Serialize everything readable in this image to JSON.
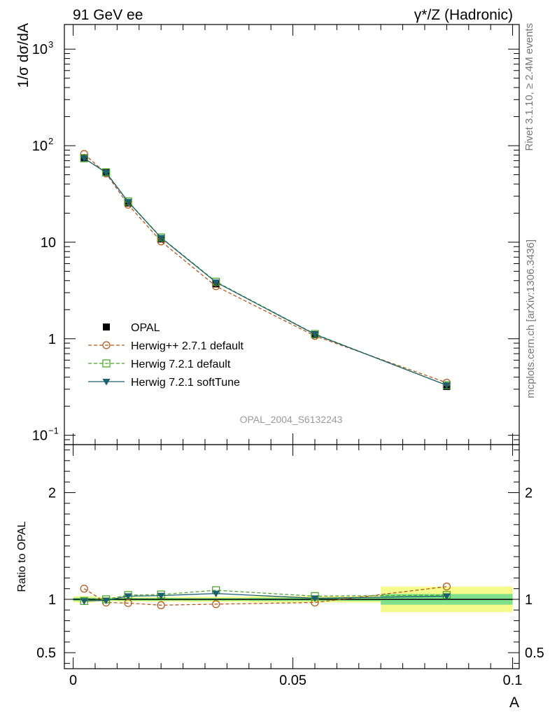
{
  "header": {
    "left_title": "91 GeV ee",
    "right_title": "γ*/Z (Hadronic)"
  },
  "side_labels": {
    "rivet": "Rivet 3.1.10, ≥ 2.4M events",
    "mcplots": "mcplots.cern.ch [arXiv:1306.3436]"
  },
  "watermark": "OPAL_2004_S6132243",
  "chart_data": [
    {
      "panel": "main",
      "type": "line",
      "ylabel": "1/σ dσ/dA",
      "yscale": "log",
      "ylim": [
        0.08,
        1800
      ],
      "yticks": [
        {
          "value": 0.1,
          "label": "10",
          "exp": "−1"
        },
        {
          "value": 1,
          "label": "1",
          "exp": ""
        },
        {
          "value": 10,
          "label": "10",
          "exp": ""
        },
        {
          "value": 100,
          "label": "10",
          "exp": "2"
        },
        {
          "value": 1000,
          "label": "10",
          "exp": "3"
        }
      ],
      "legend_position": "bottom-left",
      "series": [
        {
          "name": "OPAL",
          "style": "data",
          "color": "#000000",
          "x": [
            0.0025,
            0.0075,
            0.0125,
            0.02,
            0.0325,
            0.055,
            0.085
          ],
          "y": [
            75,
            53,
            25.5,
            10.8,
            3.7,
            1.1,
            0.32
          ]
        },
        {
          "name": "Herwig++ 2.7.1 default",
          "style": "dashed-circle",
          "color": "#b35a1f",
          "x": [
            0.0025,
            0.0075,
            0.0125,
            0.02,
            0.0325,
            0.055,
            0.085
          ],
          "y": [
            82,
            51.5,
            24.5,
            10.2,
            3.5,
            1.07,
            0.35
          ]
        },
        {
          "name": "Herwig 7.2.1 default",
          "style": "dashed-square",
          "color": "#4aa82a",
          "x": [
            0.0025,
            0.0075,
            0.0125,
            0.02,
            0.0325,
            0.055,
            0.085
          ],
          "y": [
            74,
            53,
            26.4,
            11.2,
            3.9,
            1.12,
            0.33
          ]
        },
        {
          "name": "Herwig 7.2.1 softTune",
          "style": "solid-triangle",
          "color": "#1c5f6e",
          "x": [
            0.0025,
            0.0075,
            0.0125,
            0.02,
            0.0325,
            0.055,
            0.085
          ],
          "y": [
            74,
            52.5,
            26.2,
            11.1,
            3.85,
            1.11,
            0.33
          ]
        }
      ]
    },
    {
      "panel": "ratio",
      "type": "line",
      "ylabel": "Ratio to OPAL",
      "xlabel": "A",
      "ylim": [
        0.35,
        2.45
      ],
      "yticks": [
        {
          "value": 0.5,
          "label": "0.5"
        },
        {
          "value": 1,
          "label": "1"
        },
        {
          "value": 2,
          "label": "2"
        }
      ],
      "xlim": [
        -0.002,
        0.1015
      ],
      "xticks": [
        {
          "value": 0,
          "label": "0"
        },
        {
          "value": 0.05,
          "label": "0.05"
        },
        {
          "value": 0.1,
          "label": "0.1"
        }
      ],
      "band_edges": [
        0,
        0.005,
        0.01,
        0.015,
        0.025,
        0.04,
        0.07,
        0.1
      ],
      "band_inner": [
        0.015,
        0.01,
        0.012,
        0.012,
        0.012,
        0.015,
        0.05
      ],
      "band_outer": [
        0.03,
        0.02,
        0.022,
        0.022,
        0.025,
        0.03,
        0.12
      ],
      "colors": {
        "band_inner": "#7ee08a",
        "band_outer": "#f5fa8c"
      },
      "series": [
        {
          "name": "Herwig++ 2.7.1 default",
          "style": "dashed-circle",
          "color": "#b35a1f",
          "x": [
            0.0025,
            0.0075,
            0.0125,
            0.02,
            0.0325,
            0.055,
            0.085
          ],
          "y": [
            1.1,
            0.97,
            0.965,
            0.945,
            0.955,
            0.97,
            1.12
          ]
        },
        {
          "name": "Herwig 7.2.1 default",
          "style": "dashed-square",
          "color": "#4aa82a",
          "x": [
            0.0025,
            0.0075,
            0.0125,
            0.02,
            0.0325,
            0.055,
            0.085
          ],
          "y": [
            0.985,
            1.0,
            1.04,
            1.045,
            1.085,
            1.03,
            1.04
          ]
        },
        {
          "name": "Herwig 7.2.1 softTune",
          "style": "solid-triangle",
          "color": "#1c5f6e",
          "x": [
            0.0025,
            0.0075,
            0.0125,
            0.02,
            0.0325,
            0.055,
            0.085
          ],
          "y": [
            0.985,
            0.99,
            1.03,
            1.035,
            1.055,
            1.01,
            1.03
          ]
        }
      ]
    }
  ]
}
